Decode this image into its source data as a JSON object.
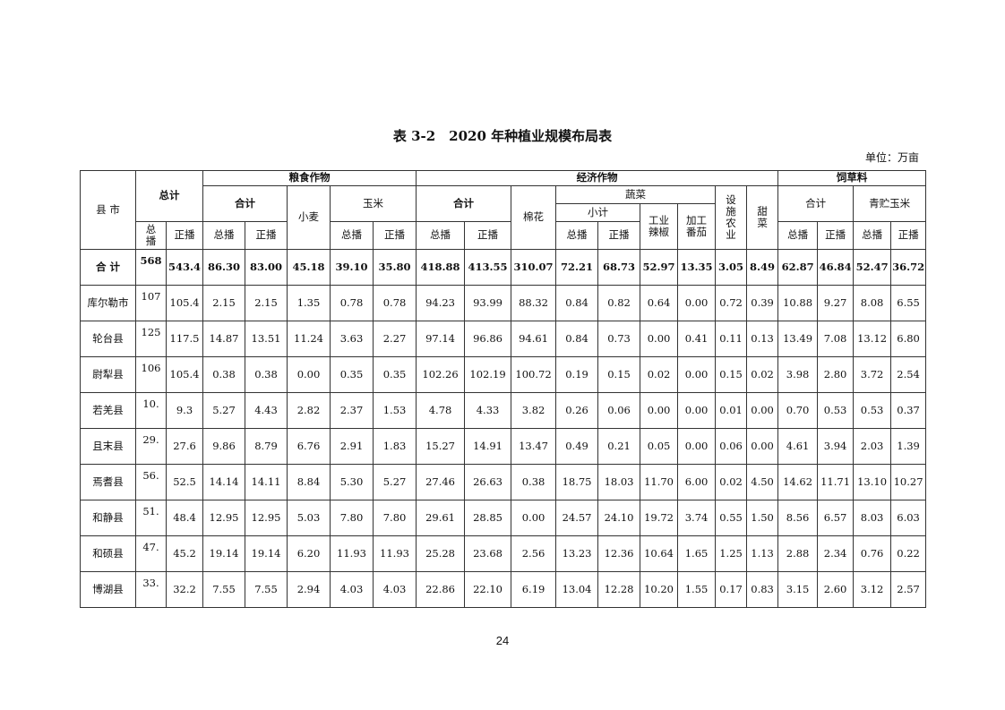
{
  "title": "表 3-2　2020 年种植业规模布局表",
  "unit": "单位：万亩",
  "page_number": "24",
  "headers": {
    "county": "县 市",
    "total": "总计",
    "grain": "粮食作物",
    "economic": "经济作物",
    "forage": "饲草料",
    "subtotal": "合计",
    "wheat": "小麦",
    "corn": "玉米",
    "cotton": "棉花",
    "vegetables": "蔬菜",
    "veg_subtotal": "小计",
    "pepper": "工业辣椒",
    "tomato": "加工番茄",
    "facility": "设施农业",
    "beet": "甜菜",
    "silage_corn": "青贮玉米",
    "total_sown": "总播",
    "direct_sown": "正播"
  },
  "rows": [
    [
      "合 计",
      "568",
      "543.4",
      "86.30",
      "83.00",
      "45.18",
      "39.10",
      "35.80",
      "418.88",
      "413.55",
      "310.07",
      "72.21",
      "68.73",
      "52.97",
      "13.35",
      "3.05",
      "8.49",
      "62.87",
      "46.84",
      "52.47",
      "36.72"
    ],
    [
      "库尔勒市",
      "107",
      "105.4",
      "2.15",
      "2.15",
      "1.35",
      "0.78",
      "0.78",
      "94.23",
      "93.99",
      "88.32",
      "0.84",
      "0.82",
      "0.64",
      "0.00",
      "0.72",
      "0.39",
      "10.88",
      "9.27",
      "8.08",
      "6.55"
    ],
    [
      "轮台县",
      "125",
      "117.5",
      "14.87",
      "13.51",
      "11.24",
      "3.63",
      "2.27",
      "97.14",
      "96.86",
      "94.61",
      "0.84",
      "0.73",
      "0.00",
      "0.41",
      "0.11",
      "0.13",
      "13.49",
      "7.08",
      "13.12",
      "6.80"
    ],
    [
      "尉犁县",
      "106",
      "105.4",
      "0.38",
      "0.38",
      "0.00",
      "0.35",
      "0.35",
      "102.26",
      "102.19",
      "100.72",
      "0.19",
      "0.15",
      "0.02",
      "0.00",
      "0.15",
      "0.02",
      "3.98",
      "2.80",
      "3.72",
      "2.54"
    ],
    [
      "若羌县",
      "10.",
      "9.3",
      "5.27",
      "4.43",
      "2.82",
      "2.37",
      "1.53",
      "4.78",
      "4.33",
      "3.82",
      "0.26",
      "0.06",
      "0.00",
      "0.00",
      "0.01",
      "0.00",
      "0.70",
      "0.53",
      "0.53",
      "0.37"
    ],
    [
      "且末县",
      "29.",
      "27.6",
      "9.86",
      "8.79",
      "6.76",
      "2.91",
      "1.83",
      "15.27",
      "14.91",
      "13.47",
      "0.49",
      "0.21",
      "0.05",
      "0.00",
      "0.06",
      "0.00",
      "4.61",
      "3.94",
      "2.03",
      "1.39"
    ],
    [
      "焉耆县",
      "56.",
      "52.5",
      "14.14",
      "14.11",
      "8.84",
      "5.30",
      "5.27",
      "27.46",
      "26.63",
      "0.38",
      "18.75",
      "18.03",
      "11.70",
      "6.00",
      "0.02",
      "4.50",
      "14.62",
      "11.71",
      "13.10",
      "10.27"
    ],
    [
      "和静县",
      "51.",
      "48.4",
      "12.95",
      "12.95",
      "5.03",
      "7.80",
      "7.80",
      "29.61",
      "28.85",
      "0.00",
      "24.57",
      "24.10",
      "19.72",
      "3.74",
      "0.55",
      "1.50",
      "8.56",
      "6.57",
      "8.03",
      "6.03"
    ],
    [
      "和硕县",
      "47.",
      "45.2",
      "19.14",
      "19.14",
      "6.20",
      "11.93",
      "11.93",
      "25.28",
      "23.68",
      "2.56",
      "13.23",
      "12.36",
      "10.64",
      "1.65",
      "1.25",
      "1.13",
      "2.88",
      "2.34",
      "0.76",
      "0.22"
    ],
    [
      "博湖县",
      "33.",
      "32.2",
      "7.55",
      "7.55",
      "2.94",
      "4.03",
      "4.03",
      "22.86",
      "22.10",
      "6.19",
      "13.04",
      "12.28",
      "10.20",
      "1.55",
      "0.17",
      "0.83",
      "3.15",
      "2.60",
      "3.12",
      "2.57"
    ]
  ]
}
